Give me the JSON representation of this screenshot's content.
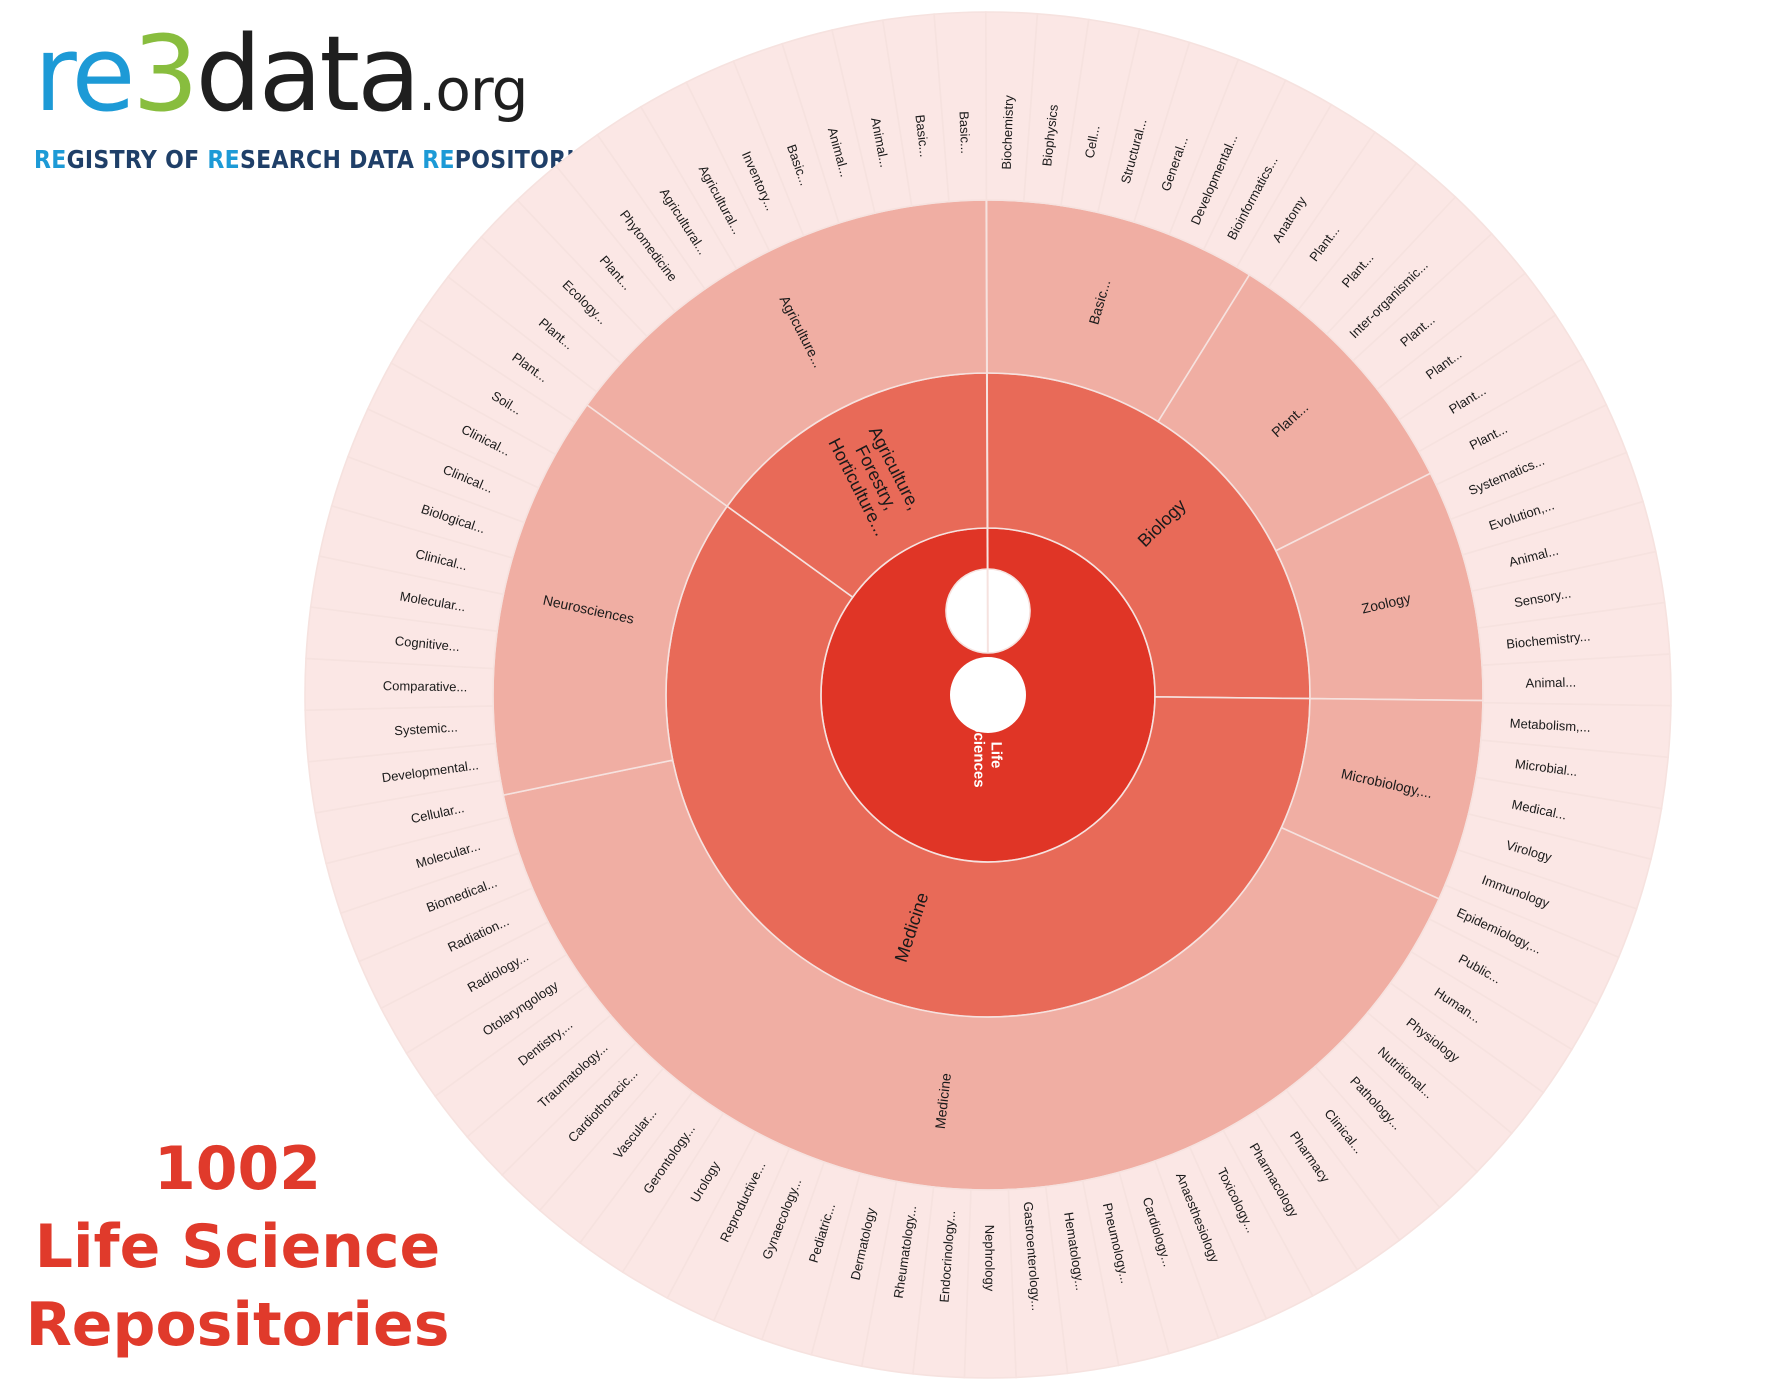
{
  "logo": {
    "text": "re3data.org",
    "part_re": "re",
    "part_3": "3",
    "part_data": "data",
    "part_org": ".org",
    "tagline": "REGISTRY OF RESEARCH DATA REPOSITORIES",
    "tag_1a": "RE",
    "tag_1b": "GISTRY OF ",
    "tag_2a": "RE",
    "tag_2b": "SEARCH DATA ",
    "tag_3a": "RE",
    "tag_3b": "POSITORIES",
    "colors": {
      "blue": "#1d9ad6",
      "green": "#88bd3e",
      "dark": "#1f1f1f",
      "navy": "#1f3f68"
    }
  },
  "summary": {
    "count": "1002",
    "line1": "Life Science",
    "line2": "Repositories",
    "color": "#e03a2b"
  },
  "chart_data": {
    "type": "sunburst",
    "colors": {
      "level1": "#e03526",
      "level2": "#e86a58",
      "level3": "#f0aea3",
      "level4": "#fbe7e5",
      "stroke": "#f4dcd8"
    },
    "level1": [
      {
        "label": "Life Sciences",
        "start": 0,
        "end": 1
      }
    ],
    "level2": [
      {
        "label": "Biology",
        "start": 0.0,
        "end": 0.2523
      },
      {
        "label": "Medicine",
        "start": 0.2523,
        "end": 0.8502
      },
      {
        "label": "Agriculture, Forestry, Horticulture...",
        "start": 0.8502,
        "end": 1.0
      }
    ],
    "level3": [
      {
        "label": "Basic...",
        "start": 0.0,
        "end": 0.0891
      },
      {
        "label": "Plant...",
        "start": 0.0891,
        "end": 0.1766
      },
      {
        "label": "Zoology",
        "start": 0.1766,
        "end": 0.2523
      },
      {
        "label": "Microbiology,...",
        "start": 0.2523,
        "end": 0.3181
      },
      {
        "label": "Medicine",
        "start": 0.3181,
        "end": 0.7181
      },
      {
        "label": "Neurosciences",
        "start": 0.7181,
        "end": 0.8502
      },
      {
        "label": "Agriculture...",
        "start": 0.8502,
        "end": 1.0
      }
    ],
    "level4": [
      "Biochemistry",
      "Biophysics",
      "Cell...",
      "Structural...",
      "General...",
      "Developmental...",
      "Bioinformatics...",
      "Anatomy",
      "Plant...",
      "Plant...",
      "Inter-organismic...",
      "Plant...",
      "Plant...",
      "Plant...",
      "Plant...",
      "Systematics...",
      "Evolution,...",
      "Animal...",
      "Sensory...",
      "Biochemistry...",
      "Animal...",
      "Metabolism,...",
      "Microbial...",
      "Medical...",
      "Virology",
      "Immunology",
      "Epidemiology,...",
      "Public...",
      "Human...",
      "Physiology",
      "Nutritional...",
      "Pathology...",
      "Clinical...",
      "Pharmacy",
      "Pharmacology",
      "Toxicology...",
      "Anaesthesiology",
      "Cardiology...",
      "Pneumology...",
      "Hematology...",
      "Gastroenterology...",
      "Nephrology",
      "Endocrinology...",
      "Rheumatology...",
      "Dermatology",
      "Pediatric...",
      "Gynaecology...",
      "Reproductive...",
      "Urology",
      "Gerontology...",
      "Vascular...",
      "Cardiothoracic...",
      "Traumatology...",
      "Dentistry,...",
      "Otolaryngology",
      "Radiology...",
      "Radiation...",
      "Biomedical...",
      "Molecular...",
      "Cellular...",
      "Developmental...",
      "Systemic...",
      "Comparative...",
      "Cognitive...",
      "Molecular...",
      "Clinical...",
      "Biological...",
      "Clinical...",
      "Clinical...",
      "Soil...",
      "Plant...",
      "Plant...",
      "Ecology...",
      "Plant...",
      "Phytomedicine",
      "Agricultural...",
      "Agricultural...",
      "Inventory...",
      "Basic...",
      "Animal...",
      "Animal...",
      "Basic...",
      "Basic..."
    ]
  }
}
